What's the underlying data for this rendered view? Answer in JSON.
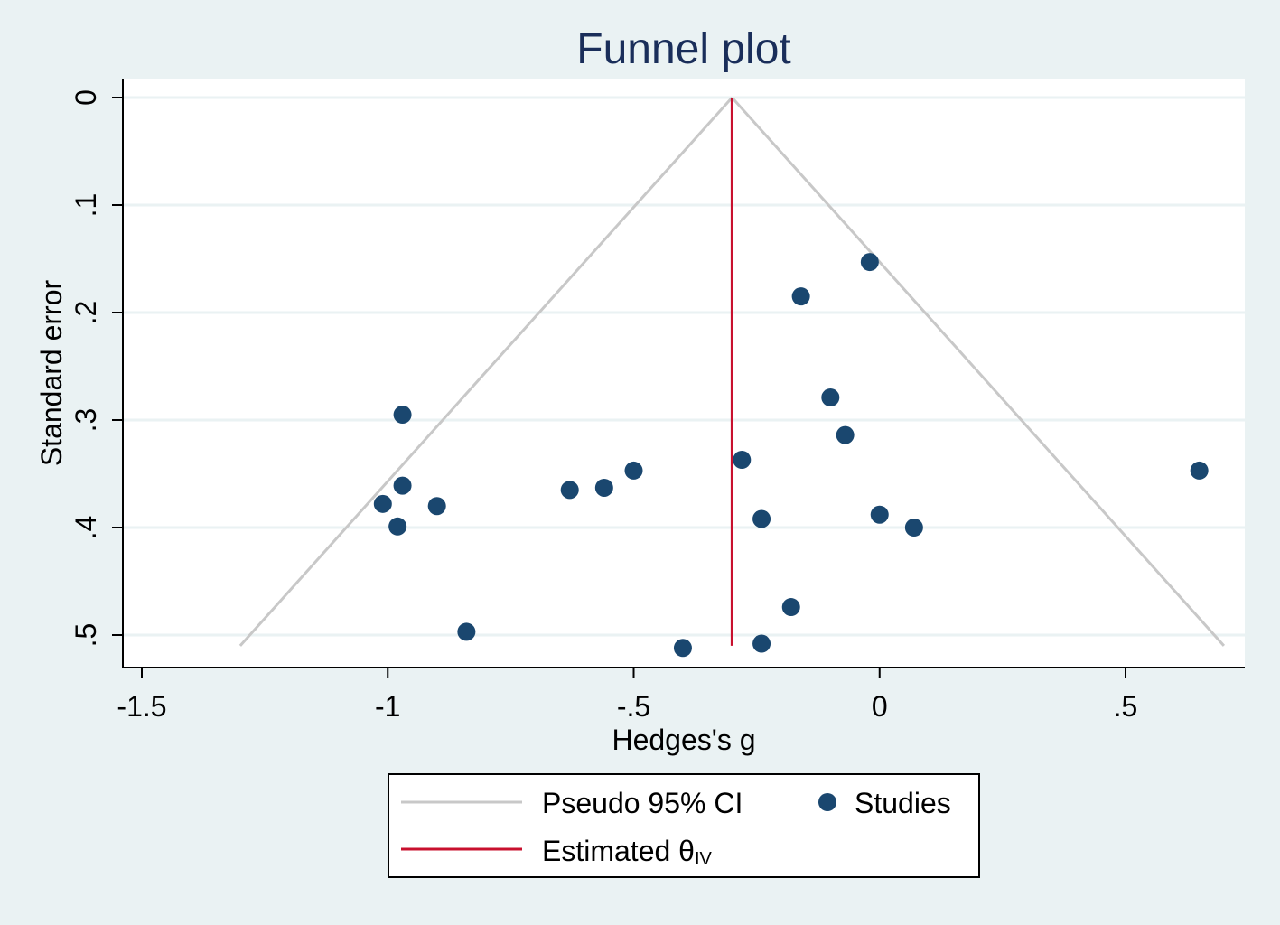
{
  "chart_data": {
    "type": "scatter",
    "title": "Funnel plot",
    "xlabel": "Hedges's g",
    "ylabel": "Standard error",
    "xlim": [
      -1.54,
      0.74
    ],
    "ylim": [
      0,
      0.53
    ],
    "y_reversed": true,
    "x_ticks": [
      -1.5,
      -1,
      -0.5,
      0,
      0.5
    ],
    "x_tick_labels": [
      "-1.5",
      "-1",
      "-.5",
      "0",
      ".5"
    ],
    "y_ticks": [
      0,
      0.1,
      0.2,
      0.3,
      0.4,
      0.5
    ],
    "y_tick_labels": [
      "0",
      ".1",
      ".2",
      ".3",
      ".4",
      ".5"
    ],
    "grid": true,
    "estimate": {
      "x": -0.3,
      "se_max": 0.51
    },
    "pseudo_ci": {
      "apex": [
        -0.3,
        0
      ],
      "left": [
        -1.3,
        0.51
      ],
      "right": [
        0.7,
        0.51
      ]
    },
    "series": [
      {
        "name": "Studies",
        "points": [
          {
            "x": -0.02,
            "y": 0.153
          },
          {
            "x": -0.16,
            "y": 0.185
          },
          {
            "x": -0.1,
            "y": 0.279
          },
          {
            "x": -0.07,
            "y": 0.314
          },
          {
            "x": -0.97,
            "y": 0.295
          },
          {
            "x": -0.28,
            "y": 0.337
          },
          {
            "x": 0.65,
            "y": 0.347
          },
          {
            "x": -0.5,
            "y": 0.347
          },
          {
            "x": -0.97,
            "y": 0.361
          },
          {
            "x": -0.56,
            "y": 0.363
          },
          {
            "x": -0.63,
            "y": 0.365
          },
          {
            "x": -1.01,
            "y": 0.378
          },
          {
            "x": -0.9,
            "y": 0.38
          },
          {
            "x": -0.24,
            "y": 0.392
          },
          {
            "x": 0.0,
            "y": 0.388
          },
          {
            "x": -0.98,
            "y": 0.399
          },
          {
            "x": 0.07,
            "y": 0.4
          },
          {
            "x": -0.18,
            "y": 0.474
          },
          {
            "x": -0.84,
            "y": 0.497
          },
          {
            "x": -0.24,
            "y": 0.508
          },
          {
            "x": -0.4,
            "y": 0.512
          }
        ]
      }
    ],
    "legend": {
      "position": "bottom",
      "items": [
        {
          "label": "Pseudo 95% CI",
          "kind": "line"
        },
        {
          "label": "Studies",
          "kind": "marker"
        },
        {
          "label": "Estimated θ",
          "subscript": "IV",
          "kind": "line"
        }
      ]
    },
    "colors": {
      "background": "#eaf2f3",
      "plot_area": "#ffffff",
      "grid": "#eaf2f3",
      "ci_line": "#c8c8c8",
      "estimate_line": "#c8102e",
      "points": "#1a476f",
      "title": "#1a2e5a"
    }
  }
}
